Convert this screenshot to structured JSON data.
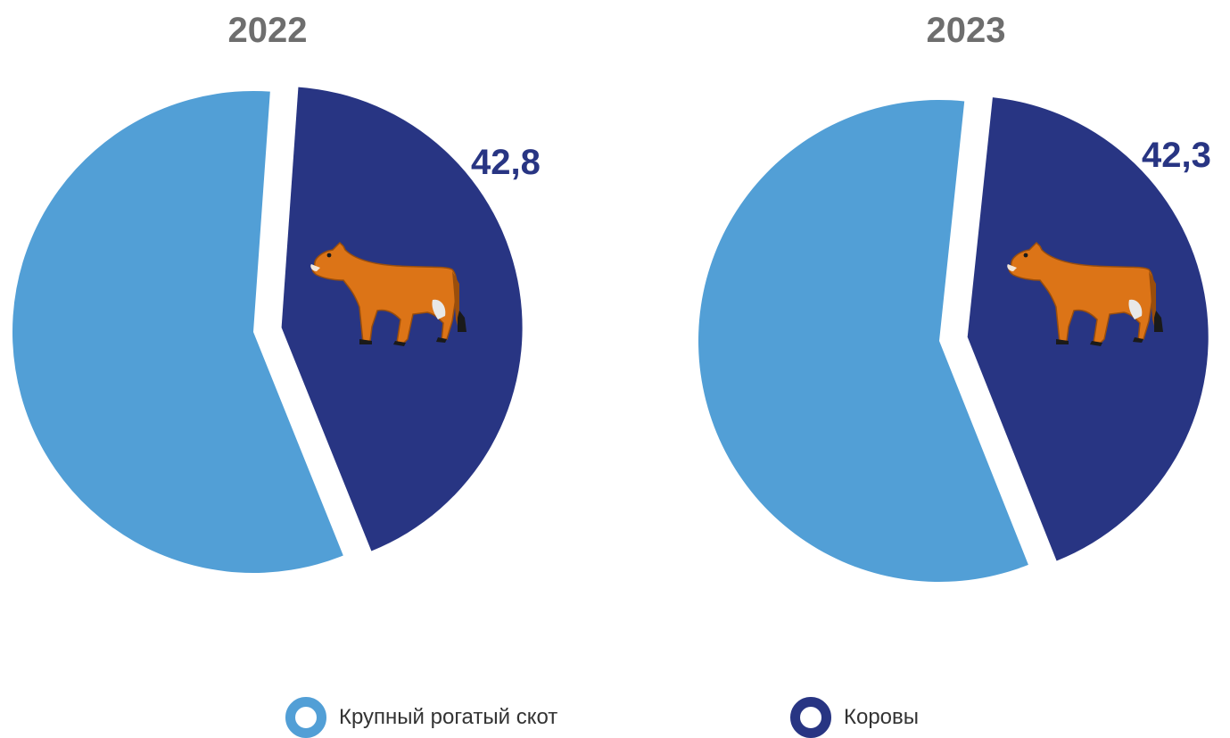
{
  "chart_data": [
    {
      "type": "pie",
      "title": "2022",
      "slices": [
        {
          "name": "Крупный рогатый скот",
          "value": 57.2,
          "color": "#529fd6",
          "label": ""
        },
        {
          "name": "Коровы",
          "value": 42.8,
          "color": "#283583",
          "label": "42,8",
          "exploded": true
        }
      ],
      "icon": "cow-icon"
    },
    {
      "type": "pie",
      "title": "2023",
      "slices": [
        {
          "name": "Крупный рогатый скот",
          "value": 57.7,
          "color": "#529fd6",
          "label": ""
        },
        {
          "name": "Коровы",
          "value": 42.3,
          "color": "#283583",
          "label": "42,3",
          "exploded": true
        }
      ],
      "icon": "cow-icon"
    }
  ],
  "legend": [
    {
      "label": "Крупный рогатый скот",
      "color": "#529fd6"
    },
    {
      "label": "Коровы",
      "color": "#283583"
    }
  ],
  "colors": {
    "title": "#6e6e6e",
    "label": "#283583"
  }
}
